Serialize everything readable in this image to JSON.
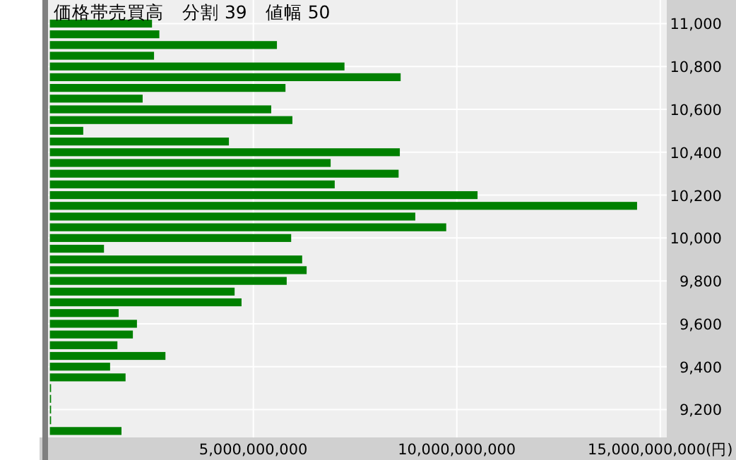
{
  "chart_data": {
    "type": "bar",
    "orientation": "horizontal",
    "title": "価格帯売買高　分割 39　値幅 50",
    "color": "#008000",
    "grid": true,
    "x": [
      11000,
      10950,
      10900,
      10850,
      10800,
      10750,
      10700,
      10650,
      10600,
      10550,
      10500,
      10450,
      10400,
      10350,
      10300,
      10250,
      10200,
      10150,
      10100,
      10050,
      10000,
      9950,
      9900,
      9850,
      9800,
      9750,
      9700,
      9650,
      9600,
      9550,
      9500,
      9450,
      9400,
      9350,
      9300,
      9250,
      9200,
      9150,
      9100
    ],
    "values": [
      2510000000,
      2690000000,
      5580000000,
      2560000000,
      7240000000,
      8620000000,
      5790000000,
      2280000000,
      5440000000,
      5960000000,
      820000000,
      4400000000,
      8600000000,
      6900000000,
      8570000000,
      7000000000,
      10510000000,
      14430000000,
      8980000000,
      9740000000,
      5930000000,
      1330000000,
      6200000000,
      6310000000,
      5820000000,
      4540000000,
      4710000000,
      1690000000,
      2140000000,
      2040000000,
      1660000000,
      2840000000,
      1480000000,
      1860000000,
      30000000,
      30000000,
      30000000,
      30000000,
      1760000000
    ],
    "xlim": [
      0,
      15160000000
    ],
    "xticks": [
      {
        "value": 5000000000,
        "label": "5,000,000,000"
      },
      {
        "value": 10000000000,
        "label": "10,000,000,000"
      },
      {
        "value": 15000000000,
        "label": "15,000,000,000(円)"
      }
    ],
    "ylim": [
      9070,
      11110
    ],
    "yticks": [
      {
        "value": 9200,
        "label": "9,200"
      },
      {
        "value": 9400,
        "label": "9,400"
      },
      {
        "value": 9600,
        "label": "9,600"
      },
      {
        "value": 9800,
        "label": "9,800"
      },
      {
        "value": 10000,
        "label": "10,000"
      },
      {
        "value": 10200,
        "label": "10,200"
      },
      {
        "value": 10400,
        "label": "10,400"
      },
      {
        "value": 10600,
        "label": "10,600"
      },
      {
        "value": 10800,
        "label": "10,800"
      },
      {
        "value": 11000,
        "label": "11,000"
      }
    ]
  }
}
